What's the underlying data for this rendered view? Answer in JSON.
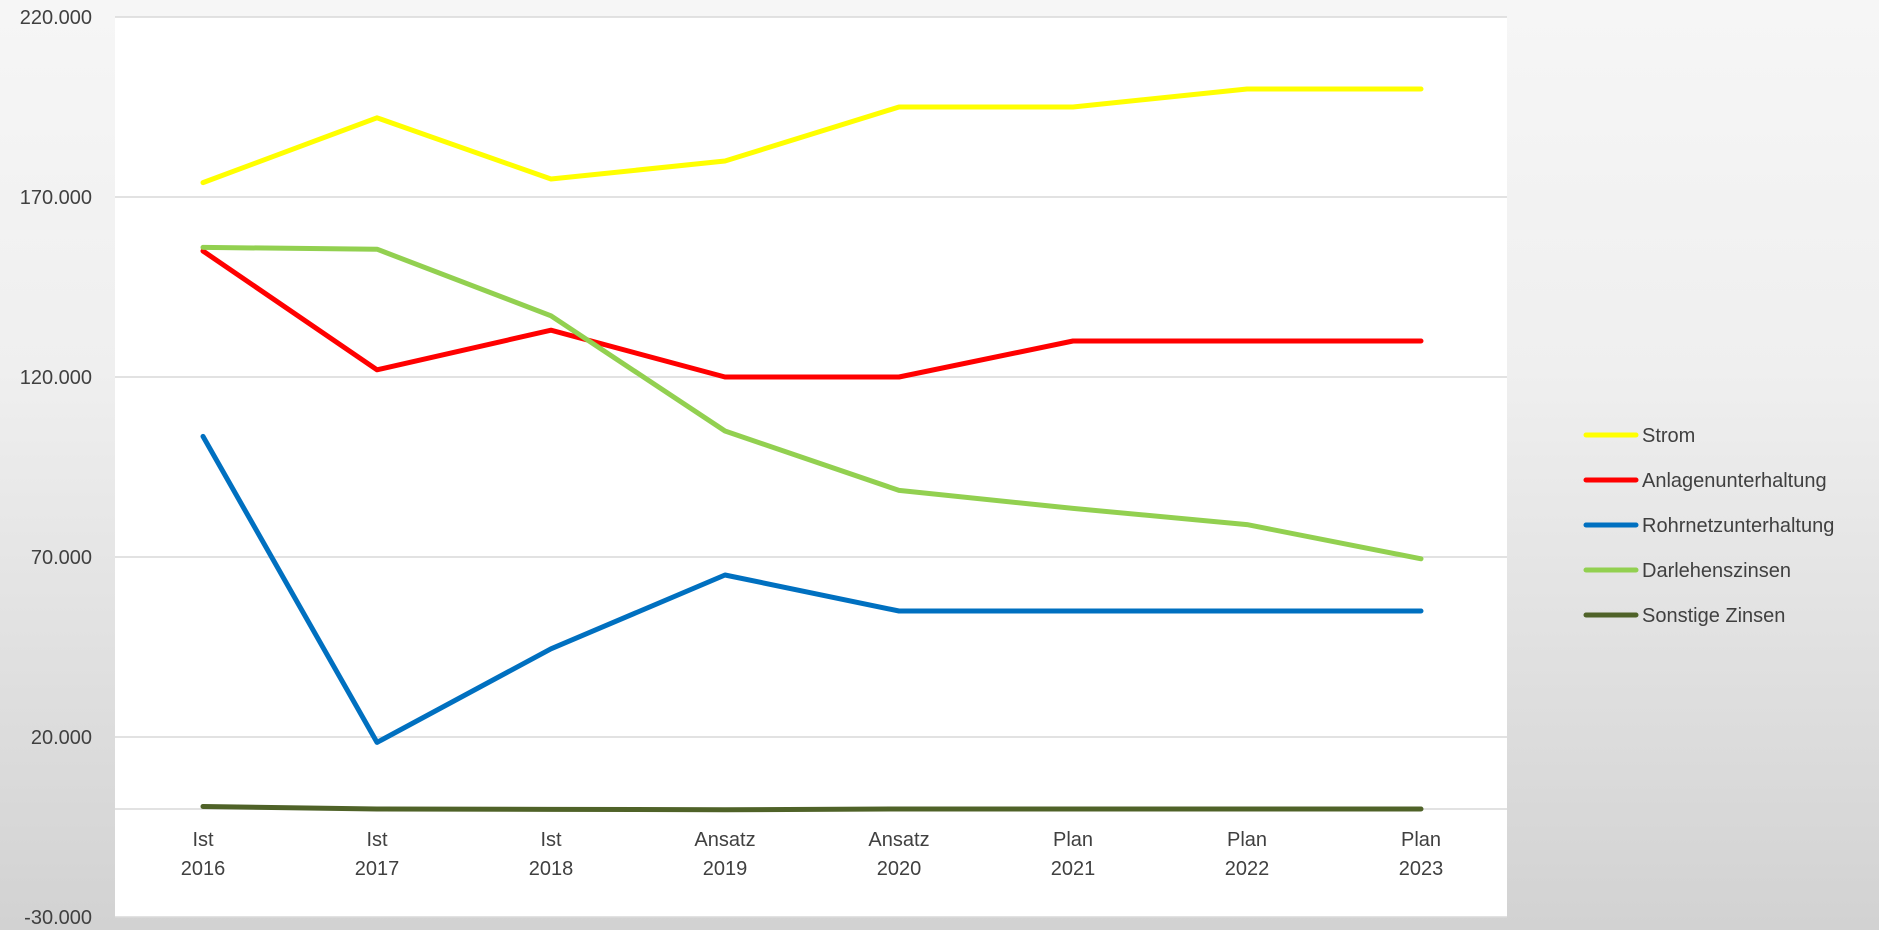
{
  "chart_data": {
    "type": "line",
    "title": "",
    "xlabel": "",
    "ylabel": "",
    "categories": [
      [
        "Ist",
        "2016"
      ],
      [
        "Ist",
        "2017"
      ],
      [
        "Ist",
        "2018"
      ],
      [
        "Ansatz",
        "2019"
      ],
      [
        "Ansatz",
        "2020"
      ],
      [
        "Plan",
        "2021"
      ],
      [
        "Plan",
        "2022"
      ],
      [
        "Plan",
        "2023"
      ]
    ],
    "yticks": [
      "220.000",
      "170.000",
      "120.000",
      "70.000",
      "20.000",
      "-30.000"
    ],
    "ylim": [
      -30000,
      220000
    ],
    "grid": true,
    "legend_position": "right",
    "series": [
      {
        "name": "Strom",
        "color": "#ffff00",
        "values": [
          174000,
          192000,
          175000,
          180000,
          195000,
          195000,
          200000,
          200000
        ]
      },
      {
        "name": "Anlagenunterhaltung",
        "color": "#ff0000",
        "values": [
          155000,
          122000,
          133000,
          120000,
          120000,
          130000,
          130000,
          130000
        ]
      },
      {
        "name": "Rohrnetzunterhaltung",
        "color": "#0070c0",
        "values": [
          103500,
          18500,
          44500,
          65000,
          55000,
          55000,
          55000,
          55000
        ]
      },
      {
        "name": "Darlehenszinsen",
        "color": "#92d050",
        "values": [
          156000,
          155500,
          137000,
          105000,
          88500,
          83500,
          79000,
          69500
        ]
      },
      {
        "name": "Sonstige Zinsen",
        "color": "#4f6228",
        "values": [
          700,
          0,
          -100,
          -200,
          0,
          0,
          0,
          0
        ]
      }
    ]
  }
}
